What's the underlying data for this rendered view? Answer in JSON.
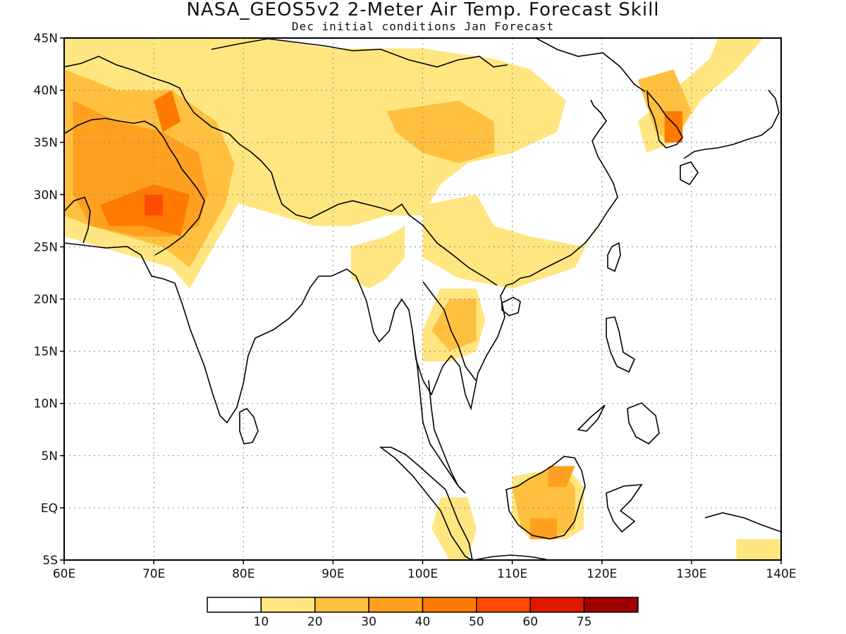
{
  "title": "NASA_GEOS5v2 2-Meter Air Temp. Forecast Skill",
  "subtitle": "Dec initial conditions   Jan Forecast",
  "map": {
    "lon_range": [
      60,
      140
    ],
    "lat_range": [
      -5,
      45
    ],
    "lon_ticks": [
      "60E",
      "70E",
      "80E",
      "90E",
      "100E",
      "110E",
      "120E",
      "130E",
      "140E"
    ],
    "lat_ticks": [
      "45N",
      "40N",
      "35N",
      "30N",
      "25N",
      "20N",
      "15N",
      "10N",
      "5N",
      "EQ",
      "5S"
    ],
    "gridlines": true,
    "gridline_style": "dotted"
  },
  "colorbar": {
    "colors": [
      "#ffffff",
      "#ffe680",
      "#ffc040",
      "#ffa020",
      "#ff7a00",
      "#ff4a00",
      "#e01800",
      "#a00000"
    ],
    "labels": [
      "10",
      "20",
      "30",
      "40",
      "50",
      "60",
      "75"
    ]
  },
  "skill_regions": [
    {
      "level": 1,
      "polygon": [
        [
          60,
          45
        ],
        [
          82,
          45
        ],
        [
          90,
          44
        ],
        [
          100,
          44
        ],
        [
          108,
          43
        ],
        [
          112,
          42
        ],
        [
          116,
          39
        ],
        [
          115,
          36
        ],
        [
          110,
          34
        ],
        [
          105,
          33
        ],
        [
          102,
          31
        ],
        [
          100,
          28
        ],
        [
          96,
          28
        ],
        [
          92,
          27
        ],
        [
          88,
          27
        ],
        [
          84,
          28
        ],
        [
          80,
          29
        ],
        [
          76,
          30
        ],
        [
          75,
          33
        ],
        [
          72,
          36
        ],
        [
          68,
          37
        ],
        [
          64,
          37
        ],
        [
          60,
          37
        ]
      ]
    },
    {
      "level": 1,
      "polygon": [
        [
          100,
          29
        ],
        [
          106,
          30
        ],
        [
          108,
          27
        ],
        [
          112,
          26
        ],
        [
          118,
          25
        ],
        [
          120,
          28
        ],
        [
          117,
          23
        ],
        [
          110,
          21
        ],
        [
          104,
          22
        ],
        [
          100,
          24
        ]
      ]
    },
    {
      "level": 1,
      "polygon": [
        [
          60,
          40
        ],
        [
          66,
          38
        ],
        [
          72,
          38
        ],
        [
          78,
          36
        ],
        [
          80,
          34
        ],
        [
          80,
          30
        ],
        [
          78,
          27
        ],
        [
          76,
          24
        ],
        [
          74,
          21
        ],
        [
          72,
          23
        ],
        [
          68,
          24
        ],
        [
          64,
          25
        ],
        [
          60,
          26
        ]
      ]
    },
    {
      "level": 1,
      "polygon": [
        [
          124,
          37
        ],
        [
          128,
          40
        ],
        [
          132,
          43
        ],
        [
          133,
          45
        ],
        [
          138,
          45
        ],
        [
          135,
          42
        ],
        [
          131,
          39
        ],
        [
          128,
          35
        ],
        [
          125,
          34
        ]
      ]
    },
    {
      "level": 1,
      "polygon": [
        [
          102,
          21
        ],
        [
          106,
          21
        ],
        [
          107,
          18
        ],
        [
          106,
          15
        ],
        [
          103,
          14
        ],
        [
          100,
          14
        ],
        [
          100,
          17
        ]
      ]
    },
    {
      "level": 1,
      "polygon": [
        [
          110,
          3
        ],
        [
          116,
          4
        ],
        [
          118,
          2
        ],
        [
          118,
          -2
        ],
        [
          116,
          -3
        ],
        [
          112,
          -3
        ],
        [
          110,
          -1
        ]
      ]
    },
    {
      "level": 1,
      "polygon": [
        [
          102,
          1
        ],
        [
          105,
          1
        ],
        [
          106,
          -2
        ],
        [
          105,
          -5
        ],
        [
          103,
          -5
        ],
        [
          101,
          -2
        ]
      ]
    },
    {
      "level": 1,
      "polygon": [
        [
          92,
          25
        ],
        [
          96,
          26
        ],
        [
          98,
          27
        ],
        [
          98,
          24
        ],
        [
          96,
          22
        ],
        [
          94,
          21
        ],
        [
          92,
          22
        ]
      ]
    },
    {
      "level": 1,
      "polygon": [
        [
          135,
          -3
        ],
        [
          140,
          -3
        ],
        [
          140,
          -5
        ],
        [
          135,
          -5
        ]
      ]
    },
    {
      "level": 2,
      "polygon": [
        [
          60,
          42
        ],
        [
          66,
          40
        ],
        [
          72,
          40
        ],
        [
          77,
          37
        ],
        [
          79,
          33
        ],
        [
          78,
          29
        ],
        [
          76,
          26
        ],
        [
          74,
          23
        ],
        [
          71,
          25
        ],
        [
          67,
          26
        ],
        [
          63,
          27
        ],
        [
          60,
          28
        ]
      ]
    },
    {
      "level": 2,
      "polygon": [
        [
          96,
          38
        ],
        [
          104,
          39
        ],
        [
          108,
          37
        ],
        [
          108,
          34
        ],
        [
          104,
          33
        ],
        [
          100,
          34
        ],
        [
          97,
          36
        ]
      ]
    },
    {
      "level": 2,
      "polygon": [
        [
          110,
          2
        ],
        [
          115,
          4
        ],
        [
          117,
          2
        ],
        [
          117,
          -2
        ],
        [
          114,
          -3
        ],
        [
          111,
          -2
        ]
      ]
    },
    {
      "level": 2,
      "polygon": [
        [
          103,
          20
        ],
        [
          106,
          20
        ],
        [
          106,
          16
        ],
        [
          103,
          15
        ],
        [
          101,
          17
        ]
      ]
    },
    {
      "level": 2,
      "polygon": [
        [
          124,
          41
        ],
        [
          128,
          42
        ],
        [
          130,
          38
        ],
        [
          128,
          35
        ],
        [
          126,
          36
        ]
      ]
    },
    {
      "level": 3,
      "polygon": [
        [
          61,
          39
        ],
        [
          66,
          37
        ],
        [
          71,
          36
        ],
        [
          75,
          34
        ],
        [
          76,
          30
        ],
        [
          75,
          27
        ],
        [
          72,
          26
        ],
        [
          68,
          26
        ],
        [
          63,
          27
        ],
        [
          61,
          30
        ]
      ]
    },
    {
      "level": 3,
      "polygon": [
        [
          112,
          -1
        ],
        [
          115,
          -1
        ],
        [
          115,
          -3
        ],
        [
          112,
          -3
        ]
      ]
    },
    {
      "level": 3,
      "polygon": [
        [
          114,
          4
        ],
        [
          117,
          4
        ],
        [
          116,
          2
        ],
        [
          114,
          2
        ]
      ]
    },
    {
      "level": 4,
      "polygon": [
        [
          64,
          29
        ],
        [
          70,
          31
        ],
        [
          74,
          30
        ],
        [
          73,
          26
        ],
        [
          69,
          27
        ],
        [
          65,
          27
        ]
      ]
    },
    {
      "level": 4,
      "polygon": [
        [
          127,
          38
        ],
        [
          129,
          38
        ],
        [
          129,
          35
        ],
        [
          127,
          35
        ]
      ]
    },
    {
      "level": 4,
      "polygon": [
        [
          70,
          39
        ],
        [
          72,
          40
        ],
        [
          73,
          37
        ],
        [
          71,
          36
        ]
      ]
    },
    {
      "level": 5,
      "polygon": [
        [
          69,
          30
        ],
        [
          71,
          30
        ],
        [
          71,
          28
        ],
        [
          69,
          28
        ]
      ]
    }
  ]
}
